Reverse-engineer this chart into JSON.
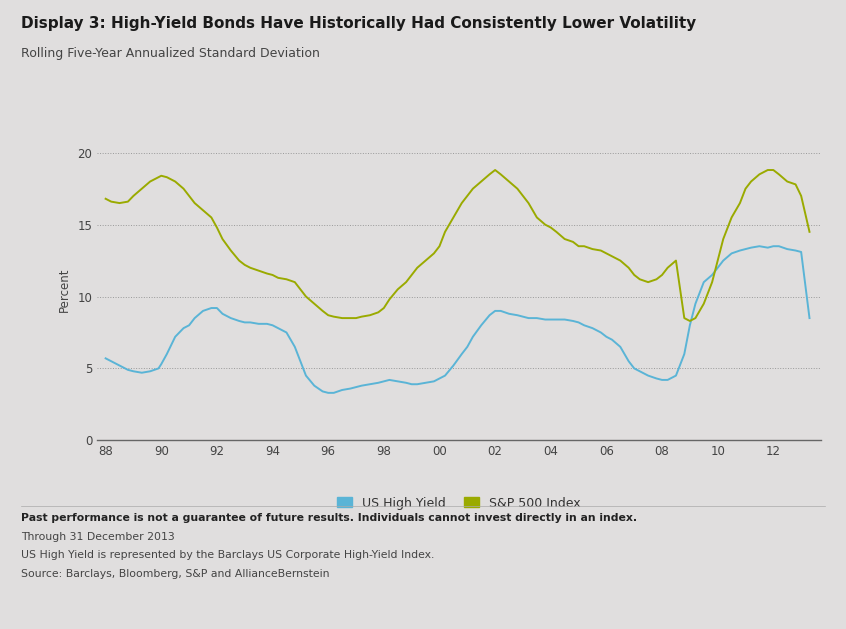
{
  "title": "Display 3: High-Yield Bonds Have Historically Had Consistently Lower Volatility",
  "subtitle": "Rolling Five-Year Annualized Standard Deviation",
  "ylabel": "Percent",
  "background_color": "#e0dede",
  "plot_background_color": "#e0dede",
  "us_hy_color": "#5ab4d6",
  "sp500_color": "#9aaa00",
  "xlim": [
    1987.7,
    2013.7
  ],
  "ylim": [
    0,
    21
  ],
  "yticks": [
    0,
    5,
    10,
    15,
    20
  ],
  "xtick_labels": [
    "88",
    "90",
    "92",
    "94",
    "96",
    "98",
    "00",
    "02",
    "04",
    "06",
    "08",
    "10",
    "12"
  ],
  "xtick_values": [
    1988,
    1990,
    1992,
    1994,
    1996,
    1998,
    2000,
    2002,
    2004,
    2006,
    2008,
    2010,
    2012
  ],
  "footer_bold": "Past performance is not a guarantee of future results. Individuals cannot invest directly in an index.",
  "footer_lines": [
    "Through 31 December 2013",
    "US High Yield is represented by the Barclays US Corporate High-Yield Index.",
    "Source: Barclays, Bloomberg, S&P and AllianceBernstein"
  ],
  "us_hy_x": [
    1988.0,
    1988.2,
    1988.5,
    1988.8,
    1989.0,
    1989.3,
    1989.6,
    1989.9,
    1990.0,
    1990.2,
    1990.5,
    1990.8,
    1991.0,
    1991.2,
    1991.5,
    1991.8,
    1992.0,
    1992.2,
    1992.5,
    1992.8,
    1993.0,
    1993.2,
    1993.5,
    1993.8,
    1994.0,
    1994.2,
    1994.5,
    1994.8,
    1995.0,
    1995.2,
    1995.5,
    1995.8,
    1996.0,
    1996.2,
    1996.5,
    1996.8,
    1997.0,
    1997.2,
    1997.5,
    1997.8,
    1998.0,
    1998.2,
    1998.5,
    1998.8,
    1999.0,
    1999.2,
    1999.5,
    1999.8,
    2000.0,
    2000.2,
    2000.5,
    2000.8,
    2001.0,
    2001.2,
    2001.5,
    2001.8,
    2002.0,
    2002.2,
    2002.5,
    2002.8,
    2003.0,
    2003.2,
    2003.5,
    2003.8,
    2004.0,
    2004.2,
    2004.5,
    2004.8,
    2005.0,
    2005.2,
    2005.5,
    2005.8,
    2006.0,
    2006.2,
    2006.5,
    2006.8,
    2007.0,
    2007.2,
    2007.5,
    2007.8,
    2008.0,
    2008.2,
    2008.5,
    2008.8,
    2009.0,
    2009.2,
    2009.5,
    2009.8,
    2010.0,
    2010.2,
    2010.5,
    2010.8,
    2011.0,
    2011.2,
    2011.5,
    2011.8,
    2012.0,
    2012.2,
    2012.5,
    2012.8,
    2013.0,
    2013.3
  ],
  "us_hy_y": [
    5.7,
    5.5,
    5.2,
    4.9,
    4.8,
    4.7,
    4.8,
    5.0,
    5.3,
    6.0,
    7.2,
    7.8,
    8.0,
    8.5,
    9.0,
    9.2,
    9.2,
    8.8,
    8.5,
    8.3,
    8.2,
    8.2,
    8.1,
    8.1,
    8.0,
    7.8,
    7.5,
    6.5,
    5.5,
    4.5,
    3.8,
    3.4,
    3.3,
    3.3,
    3.5,
    3.6,
    3.7,
    3.8,
    3.9,
    4.0,
    4.1,
    4.2,
    4.1,
    4.0,
    3.9,
    3.9,
    4.0,
    4.1,
    4.3,
    4.5,
    5.2,
    6.0,
    6.5,
    7.2,
    8.0,
    8.7,
    9.0,
    9.0,
    8.8,
    8.7,
    8.6,
    8.5,
    8.5,
    8.4,
    8.4,
    8.4,
    8.4,
    8.3,
    8.2,
    8.0,
    7.8,
    7.5,
    7.2,
    7.0,
    6.5,
    5.5,
    5.0,
    4.8,
    4.5,
    4.3,
    4.2,
    4.2,
    4.5,
    6.0,
    8.0,
    9.5,
    11.0,
    11.5,
    12.0,
    12.5,
    13.0,
    13.2,
    13.3,
    13.4,
    13.5,
    13.4,
    13.5,
    13.5,
    13.3,
    13.2,
    13.1,
    8.5
  ],
  "sp500_x": [
    1988.0,
    1988.2,
    1988.5,
    1988.8,
    1989.0,
    1989.3,
    1989.6,
    1989.9,
    1990.0,
    1990.2,
    1990.5,
    1990.8,
    1991.0,
    1991.2,
    1991.5,
    1991.8,
    1992.0,
    1992.2,
    1992.5,
    1992.8,
    1993.0,
    1993.2,
    1993.5,
    1993.8,
    1994.0,
    1994.2,
    1994.5,
    1994.8,
    1995.0,
    1995.2,
    1995.5,
    1995.8,
    1996.0,
    1996.2,
    1996.5,
    1996.8,
    1997.0,
    1997.2,
    1997.5,
    1997.8,
    1998.0,
    1998.2,
    1998.5,
    1998.8,
    1999.0,
    1999.2,
    1999.5,
    1999.8,
    2000.0,
    2000.2,
    2000.5,
    2000.8,
    2001.0,
    2001.2,
    2001.5,
    2001.8,
    2002.0,
    2002.2,
    2002.5,
    2002.8,
    2003.0,
    2003.2,
    2003.5,
    2003.8,
    2004.0,
    2004.2,
    2004.5,
    2004.8,
    2005.0,
    2005.2,
    2005.5,
    2005.8,
    2006.0,
    2006.2,
    2006.5,
    2006.8,
    2007.0,
    2007.2,
    2007.5,
    2007.8,
    2008.0,
    2008.2,
    2008.5,
    2008.8,
    2009.0,
    2009.2,
    2009.5,
    2009.8,
    2010.0,
    2010.2,
    2010.5,
    2010.8,
    2011.0,
    2011.2,
    2011.5,
    2011.8,
    2012.0,
    2012.2,
    2012.5,
    2012.8,
    2013.0,
    2013.3
  ],
  "sp500_y": [
    16.8,
    16.6,
    16.5,
    16.6,
    17.0,
    17.5,
    18.0,
    18.3,
    18.4,
    18.3,
    18.0,
    17.5,
    17.0,
    16.5,
    16.0,
    15.5,
    14.8,
    14.0,
    13.2,
    12.5,
    12.2,
    12.0,
    11.8,
    11.6,
    11.5,
    11.3,
    11.2,
    11.0,
    10.5,
    10.0,
    9.5,
    9.0,
    8.7,
    8.6,
    8.5,
    8.5,
    8.5,
    8.6,
    8.7,
    8.9,
    9.2,
    9.8,
    10.5,
    11.0,
    11.5,
    12.0,
    12.5,
    13.0,
    13.5,
    14.5,
    15.5,
    16.5,
    17.0,
    17.5,
    18.0,
    18.5,
    18.8,
    18.5,
    18.0,
    17.5,
    17.0,
    16.5,
    15.5,
    15.0,
    14.8,
    14.5,
    14.0,
    13.8,
    13.5,
    13.5,
    13.3,
    13.2,
    13.0,
    12.8,
    12.5,
    12.0,
    11.5,
    11.2,
    11.0,
    11.2,
    11.5,
    12.0,
    12.5,
    8.5,
    8.3,
    8.5,
    9.5,
    11.0,
    12.5,
    14.0,
    15.5,
    16.5,
    17.5,
    18.0,
    18.5,
    18.8,
    18.8,
    18.5,
    18.0,
    17.8,
    17.0,
    14.5
  ]
}
